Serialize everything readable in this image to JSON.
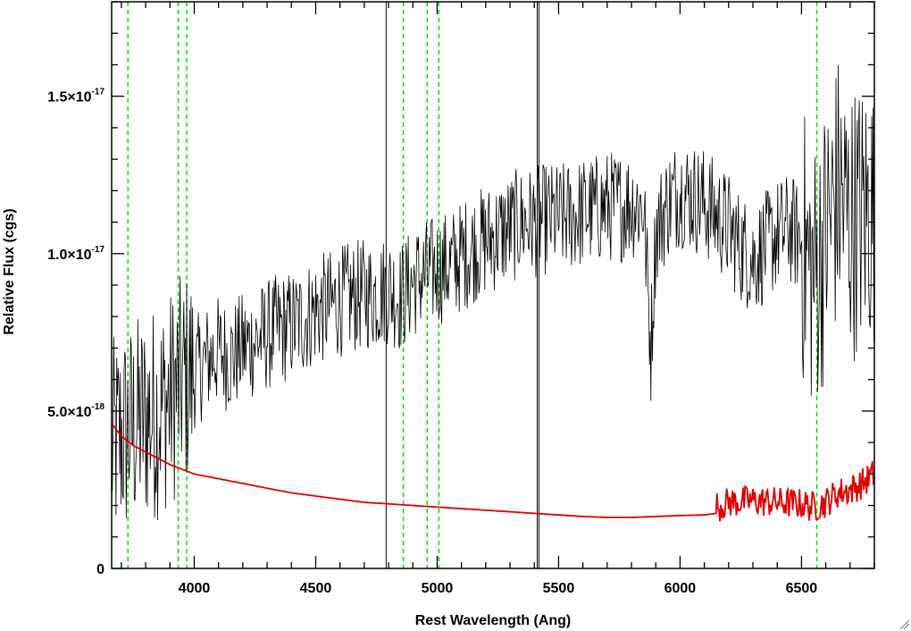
{
  "chart_data": {
    "type": "line",
    "xlabel": "Rest Wavelength (Ang)",
    "ylabel": "Relative Flux (cgs)",
    "xlim": [
      3660,
      6800
    ],
    "ylim": [
      0,
      1.8e-17
    ],
    "x_ticks": [
      {
        "value": 4000,
        "label": "4000"
      },
      {
        "value": 4500,
        "label": "4500"
      },
      {
        "value": 5000,
        "label": "5000"
      },
      {
        "value": 5500,
        "label": "5500"
      },
      {
        "value": 6000,
        "label": "6000"
      },
      {
        "value": 6500,
        "label": "6500"
      }
    ],
    "y_ticks": [
      {
        "value": 0,
        "mantissa": "0",
        "exponent": ""
      },
      {
        "value": 5e-18,
        "mantissa": "5.0×10",
        "exponent": "-18"
      },
      {
        "value": 1e-17,
        "mantissa": "1.0×10",
        "exponent": "-17"
      },
      {
        "value": 1.5e-17,
        "mantissa": "1.5×10",
        "exponent": "-17"
      }
    ],
    "grid": false,
    "series": [
      {
        "color": "#000000",
        "x": [
          3660,
          3700,
          3750,
          3800,
          3850,
          3900,
          3950,
          4000,
          4050,
          4100,
          4150,
          4200,
          4250,
          4300,
          4350,
          4400,
          4450,
          4500,
          4550,
          4600,
          4650,
          4700,
          4750,
          4800,
          4850,
          4900,
          4950,
          5000,
          5050,
          5100,
          5150,
          5200,
          5250,
          5300,
          5350,
          5400,
          5450,
          5500,
          5550,
          5600,
          5650,
          5700,
          5750,
          5800,
          5850,
          5880,
          5900,
          5950,
          6000,
          6050,
          6100,
          6150,
          6200,
          6250,
          6300,
          6350,
          6400,
          6450,
          6500,
          6550,
          6600,
          6650,
          6700,
          6750,
          6800
        ],
        "y": [
          3.8e-18,
          4.2e-18,
          4.5e-18,
          4.8e-18,
          5e-18,
          5.4e-18,
          5.9e-18,
          6.2e-18,
          6.6e-18,
          6.9e-18,
          6.7e-18,
          7e-18,
          7.2e-18,
          7.4e-18,
          7.6e-18,
          7.7e-18,
          7.9e-18,
          8.2e-18,
          8.3e-18,
          8.5e-18,
          8.6e-18,
          8.7e-18,
          8.7e-18,
          8.9e-18,
          8.6e-18,
          9.1e-18,
          9.3e-18,
          9.5e-18,
          9.6e-18,
          9.9e-18,
          1.02e-17,
          1.04e-17,
          1.06e-17,
          1.08e-17,
          1.1e-17,
          1.1e-17,
          1.11e-17,
          1.11e-17,
          1.12e-17,
          1.13e-17,
          1.14e-17,
          1.15e-17,
          1.15e-17,
          1.16e-17,
          1.15e-17,
          7e-18,
          1.07e-17,
          1.16e-17,
          1.2e-17,
          1.18e-17,
          1.16e-17,
          1.12e-17,
          1.08e-17,
          1.02e-17,
          9.8e-18,
          1.02e-17,
          1.06e-17,
          1.08e-17,
          1.04e-17,
          9.2e-18,
          1.05e-17,
          1.2e-17,
          1.1e-17,
          1.12e-17,
          1.14e-17
        ]
      },
      {
        "color": "#e00000",
        "x": [
          3660,
          3700,
          3750,
          3800,
          3850,
          3900,
          3950,
          4000,
          4100,
          4200,
          4300,
          4400,
          4500,
          4600,
          4700,
          4800,
          4900,
          5000,
          5100,
          5200,
          5300,
          5400,
          5500,
          5600,
          5700,
          5800,
          5900,
          6000,
          6100,
          6150,
          6200,
          6300,
          6400,
          6500,
          6550,
          6600,
          6650,
          6700,
          6750,
          6800
        ],
        "y": [
          4.6e-18,
          4.2e-18,
          3.9e-18,
          3.7e-18,
          3.5e-18,
          3.3e-18,
          3.15e-18,
          3e-18,
          2.85e-18,
          2.7e-18,
          2.55e-18,
          2.4e-18,
          2.3e-18,
          2.2e-18,
          2.1e-18,
          2.05e-18,
          2e-18,
          1.95e-18,
          1.9e-18,
          1.85e-18,
          1.8e-18,
          1.75e-18,
          1.7e-18,
          1.65e-18,
          1.62e-18,
          1.62e-18,
          1.65e-18,
          1.68e-18,
          1.7e-18,
          1.75e-18,
          1.9e-18,
          1.95e-18,
          1.9e-18,
          1.85e-18,
          1.75e-18,
          1.9e-18,
          2.2e-18,
          2.3e-18,
          2.5e-18,
          2.8e-18
        ]
      }
    ],
    "vertical_reference_lines": [
      {
        "color": "#00dd00",
        "style": "dashed",
        "x": [
          3727,
          3934,
          3969,
          4861,
          4959,
          5007,
          6563
        ]
      },
      {
        "color": "#000000",
        "style": "solid",
        "x": [
          4790,
          5412,
          5419
        ]
      }
    ]
  }
}
